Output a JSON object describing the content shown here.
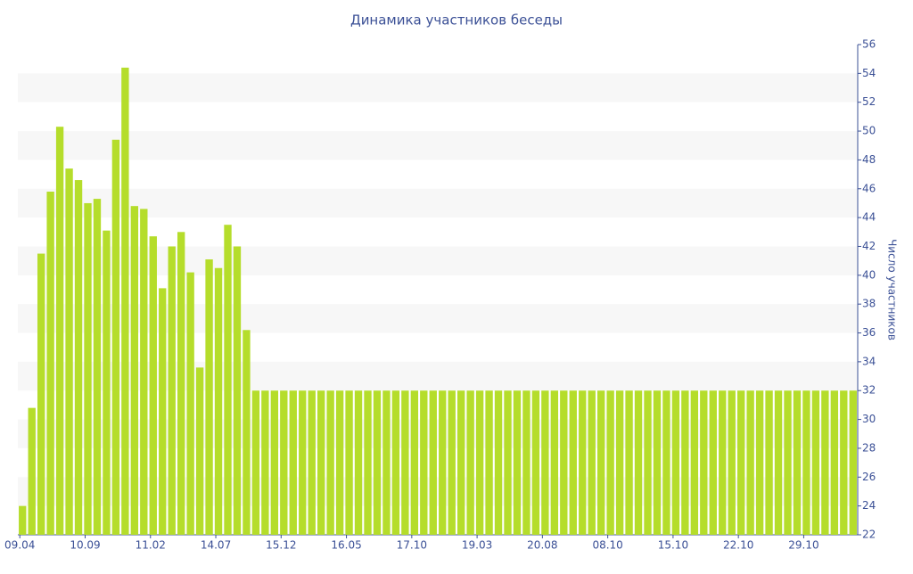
{
  "chart_data": {
    "type": "bar",
    "title": "Динамика участников беседы",
    "y_label": "Число участников",
    "categories": [
      "09.04",
      null,
      null,
      null,
      null,
      null,
      null,
      "10.09",
      null,
      null,
      null,
      null,
      null,
      null,
      "11.02",
      null,
      null,
      null,
      null,
      null,
      null,
      "14.07",
      null,
      null,
      null,
      null,
      null,
      null,
      "15.12",
      null,
      null,
      null,
      null,
      null,
      null,
      "16.05",
      null,
      null,
      null,
      null,
      null,
      null,
      "17.10",
      null,
      null,
      null,
      null,
      null,
      null,
      "19.03",
      null,
      null,
      null,
      null,
      null,
      null,
      "20.08",
      null,
      null,
      null,
      null,
      null,
      null,
      "08.10",
      null,
      null,
      null,
      null,
      null,
      null,
      "15.10",
      null,
      null,
      null,
      null,
      null,
      null,
      "22.10",
      null,
      null,
      null,
      null,
      null,
      null,
      "29.10",
      null,
      null,
      null,
      null,
      null
    ],
    "values": [
      24.0,
      30.8,
      41.5,
      45.8,
      50.3,
      47.4,
      46.6,
      45.0,
      45.3,
      43.1,
      49.4,
      54.4,
      44.8,
      44.6,
      42.7,
      39.1,
      42.0,
      43.0,
      40.2,
      33.6,
      41.1,
      40.5,
      43.5,
      42.0,
      36.2,
      32,
      32,
      32,
      32,
      32,
      32,
      32,
      32,
      32,
      32,
      32,
      32,
      32,
      32,
      32,
      32,
      32,
      32,
      32,
      32,
      32,
      32,
      32,
      32,
      32,
      32,
      32,
      32,
      32,
      32,
      32,
      32,
      32,
      32,
      32,
      32,
      32,
      32,
      32,
      32,
      32,
      32,
      32,
      32,
      32,
      32,
      32,
      32,
      32,
      32,
      32,
      32,
      32,
      32,
      32,
      32,
      32,
      32,
      32,
      32,
      32,
      32,
      32,
      32,
      32
    ],
    "color": "#b5dd2b",
    "ylim": [
      22,
      56
    ],
    "yticks": [
      22,
      24,
      26,
      28,
      30,
      32,
      34,
      36,
      38,
      40,
      42,
      44,
      46,
      48,
      50,
      52,
      54,
      56
    ],
    "grid": true
  }
}
